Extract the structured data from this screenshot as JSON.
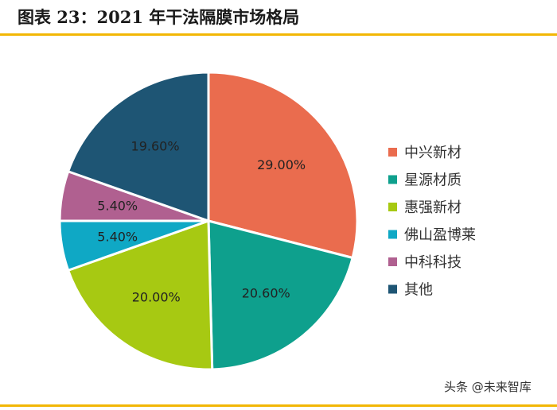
{
  "chart_data": {
    "type": "pie",
    "title": "图表 23：2021 年干法隔膜市场格局",
    "slices": [
      {
        "label": "中兴新材",
        "value": 29.0,
        "display": "29.00%",
        "color": "#ea6c4e"
      },
      {
        "label": "星源材质",
        "value": 20.6,
        "display": "20.60%",
        "color": "#0ea08d"
      },
      {
        "label": "惠强新材",
        "value": 20.0,
        "display": "20.00%",
        "color": "#a7c912"
      },
      {
        "label": "佛山盈博莱",
        "value": 5.4,
        "display": "5.40%",
        "color": "#0fa8c5"
      },
      {
        "label": "中科科技",
        "value": 5.4,
        "display": "5.40%",
        "color": "#b06090"
      },
      {
        "label": "其他",
        "value": 19.6,
        "display": "19.60%",
        "color": "#1e5574"
      }
    ],
    "legend_position": "right"
  },
  "watermark": "头条 @未来智库"
}
